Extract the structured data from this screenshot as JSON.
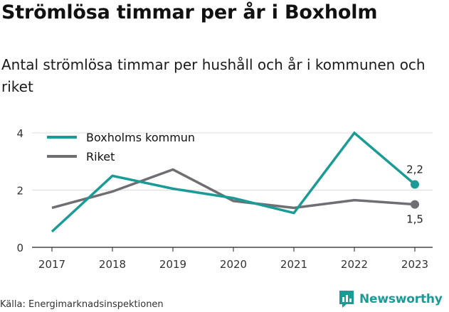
{
  "title": "Strömlösa timmar per år i Boxholm",
  "subtitle": "Antal strömlösa timmar per hushåll och år i kommunen och riket",
  "source": "Källa: Energimarknadsinspektionen",
  "brand": {
    "name": "Newsworthy",
    "icon": "newsworthy-logo-icon",
    "color": "#1a9b96"
  },
  "chart_data": {
    "type": "line",
    "categories": [
      "2017",
      "2018",
      "2019",
      "2020",
      "2021",
      "2022",
      "2023"
    ],
    "ylim": [
      0,
      4
    ],
    "yticks": [
      0,
      2,
      4
    ],
    "grid": true,
    "legend_position": "top-left",
    "series": [
      {
        "name": "Boxholms kommun",
        "color": "#1a9b96",
        "values": [
          0.55,
          2.5,
          2.05,
          1.72,
          1.2,
          4.0,
          2.2
        ],
        "end_label": "2,2"
      },
      {
        "name": "Riket",
        "color": "#6f6f73",
        "values": [
          1.38,
          1.95,
          2.72,
          1.62,
          1.38,
          1.65,
          1.5
        ],
        "end_label": "1,5"
      }
    ]
  }
}
